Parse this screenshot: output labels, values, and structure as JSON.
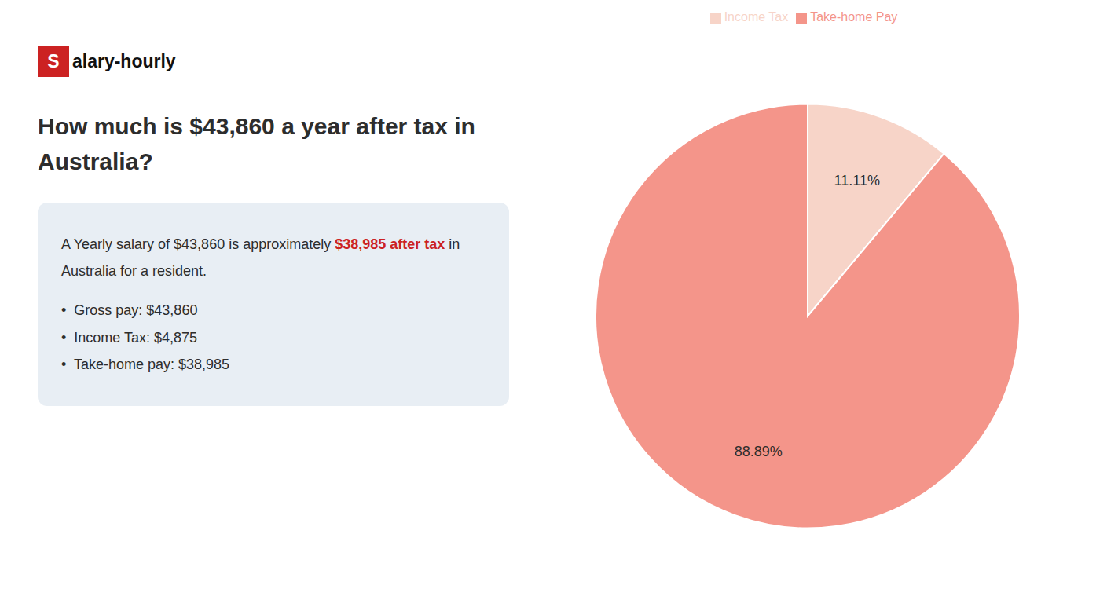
{
  "chart_data": {
    "type": "pie",
    "title": "How much is $43,860 a year after tax in Australia?",
    "categories": [
      "Income Tax",
      "Take-home Pay"
    ],
    "values": [
      11.11,
      88.89
    ],
    "value_labels": [
      "11.11%",
      "88.89%"
    ],
    "colors": [
      "#f7d4c8",
      "#f4958a"
    ],
    "data_labels": true,
    "legend": "top",
    "annotations": [
      {
        "segments": [
          {
            "text": "S",
            "color": "#cc2222"
          },
          {
            "text": "alary-hourly"
          }
        ]
      },
      {
        "segments": [
          {
            "text": "A Yearly salary of $43,860 is approximately "
          },
          {
            "text": "$38,985 after tax",
            "color": "#cc2222"
          },
          {
            "text": " in"
          }
        ]
      },
      {
        "segments": [
          {
            "text": "Australia for a resident."
          }
        ]
      },
      {
        "segments": [
          {
            "text": "•  Gross pay: $43,860"
          }
        ]
      },
      {
        "segments": [
          {
            "text": "•  Income Tax: $4,875"
          }
        ]
      },
      {
        "segments": [
          {
            "text": "•  Take-home pay: $38,985"
          }
        ]
      }
    ]
  }
}
